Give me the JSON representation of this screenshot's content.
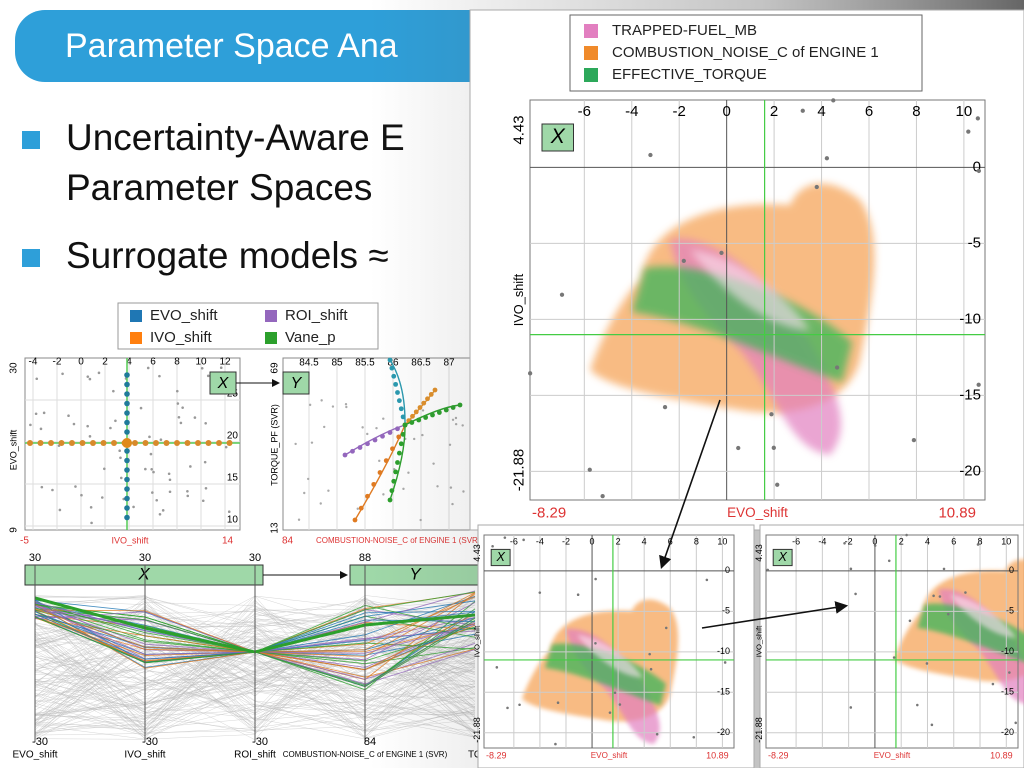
{
  "slide": {
    "title": "Parameter Space Ana",
    "bullets": [
      "Uncertainty-Aware E",
      "Parameter Spaces",
      "Surrogate models ≈"
    ]
  },
  "main_view": {
    "legend": [
      "TRAPPED-FUEL_MB",
      "COMBUSTION_NOISE_C of ENGINE 1",
      "EFFECTIVE_TORQUE"
    ],
    "x_ticks": [
      "-6",
      "-4",
      "-2",
      "0",
      "2",
      "4",
      "6",
      "8",
      "10"
    ],
    "y_ticks": [
      "0",
      "-5",
      "-10",
      "-15",
      "-20"
    ],
    "y_max": "4.43",
    "y_min": "-21.88",
    "y_label": "IVO_shift",
    "x_min": "-8.29",
    "x_label": "EVO_shift",
    "x_max": "10.89",
    "axis_tag": "X"
  },
  "small_views": [
    {
      "x_ticks": [
        "-6",
        "-4",
        "-2",
        "0",
        "2",
        "4",
        "6",
        "8",
        "10"
      ],
      "y_ticks": [
        "0",
        "-5",
        "-10",
        "-15",
        "-20"
      ],
      "y_max": "4.43",
      "y_min": "-21.88",
      "y_label": "IVO_shift",
      "x_min": "-8.29",
      "x_label": "EVO_shift",
      "x_max": "10.89",
      "axis_tag": "X"
    },
    {
      "x_ticks": [
        "-6",
        "-4",
        "-2",
        "0",
        "2",
        "4",
        "6",
        "8",
        "10"
      ],
      "y_ticks": [
        "0",
        "-5",
        "-10",
        "-15",
        "-20"
      ],
      "y_max": "4.43",
      "y_min": "-21.88",
      "y_label": "IVO_shift",
      "x_min": "-8.29",
      "x_label": "EVO_shift",
      "x_max": "10.89",
      "axis_tag": "X"
    }
  ],
  "legend_small": [
    "EVO_shift",
    "ROI_shift",
    "IVO_shift",
    "Vane_p"
  ],
  "scatter_left": {
    "x_ticks": [
      "-4",
      "-2",
      "0",
      "2",
      "4",
      "6",
      "8",
      "10",
      "12"
    ],
    "y_ticks": [
      "25",
      "20",
      "15",
      "10"
    ],
    "y_max": "30",
    "y_min": "9",
    "y_label": "EVO_shift",
    "x_min": "-5",
    "x_label": "IVO_shift",
    "x_max": "14",
    "tag": "X"
  },
  "scatter_right": {
    "x_ticks": [
      "84.5",
      "85",
      "85.5",
      "86",
      "86.5",
      "87"
    ],
    "y_max": "69",
    "y_min": "13",
    "y_label": "TORQUE_PF (SVR)",
    "x_min": "84",
    "x_label": "COMBUSTION-NOISE_C of ENGINE 1 (SVR)",
    "tag": "Y"
  },
  "parallel": {
    "tops": [
      "30",
      "30",
      "30",
      "88"
    ],
    "bottoms": [
      "-30",
      "-30",
      "-30",
      "84"
    ],
    "labels": [
      "EVO_shift",
      "IVO_shift",
      "ROI_shift",
      "COMBUSTION-NOISE_C of ENGINE 1 (SVR)",
      "TORQUE"
    ],
    "tags": [
      "X",
      "Y"
    ]
  }
}
